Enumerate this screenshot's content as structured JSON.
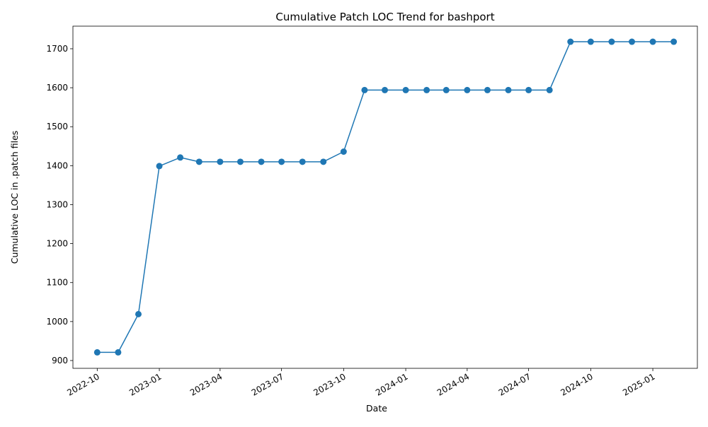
{
  "chart_data": {
    "type": "line",
    "title": "Cumulative Patch LOC Trend for bashport",
    "xlabel": "Date",
    "ylabel": "Cumulative LOC in .patch files",
    "x": [
      "2022-10-01",
      "2022-11-01",
      "2022-12-01",
      "2023-01-01",
      "2023-02-01",
      "2023-03-01",
      "2023-04-01",
      "2023-05-01",
      "2023-06-01",
      "2023-07-01",
      "2023-08-01",
      "2023-09-01",
      "2023-10-01",
      "2023-11-01",
      "2023-12-01",
      "2024-01-01",
      "2024-02-01",
      "2024-03-01",
      "2024-04-01",
      "2024-05-01",
      "2024-06-01",
      "2024-07-01",
      "2024-08-01",
      "2024-09-01",
      "2024-10-01",
      "2024-11-01",
      "2024-12-01",
      "2025-01-01",
      "2025-02-01"
    ],
    "series": [
      {
        "values": [
          921,
          921,
          1019,
          1399,
          1421,
          1410,
          1410,
          1410,
          1410,
          1410,
          1410,
          1410,
          1436,
          1594,
          1594,
          1594,
          1594,
          1594,
          1594,
          1594,
          1594,
          1594,
          1594,
          1718,
          1718,
          1718,
          1718,
          1718,
          1718
        ],
        "color": "#1f77b4"
      }
    ],
    "x_ticks": [
      "2022-10",
      "2023-01",
      "2023-04",
      "2023-07",
      "2023-10",
      "2024-01",
      "2024-04",
      "2024-07",
      "2024-10",
      "2025-01"
    ],
    "y_ticks": [
      900,
      1000,
      1100,
      1200,
      1300,
      1400,
      1500,
      1600,
      1700
    ],
    "xlim": [
      "2022-08-26",
      "2025-03-08"
    ],
    "ylim": [
      880,
      1758
    ],
    "grid": false,
    "legend": "none",
    "marker": "circle"
  }
}
